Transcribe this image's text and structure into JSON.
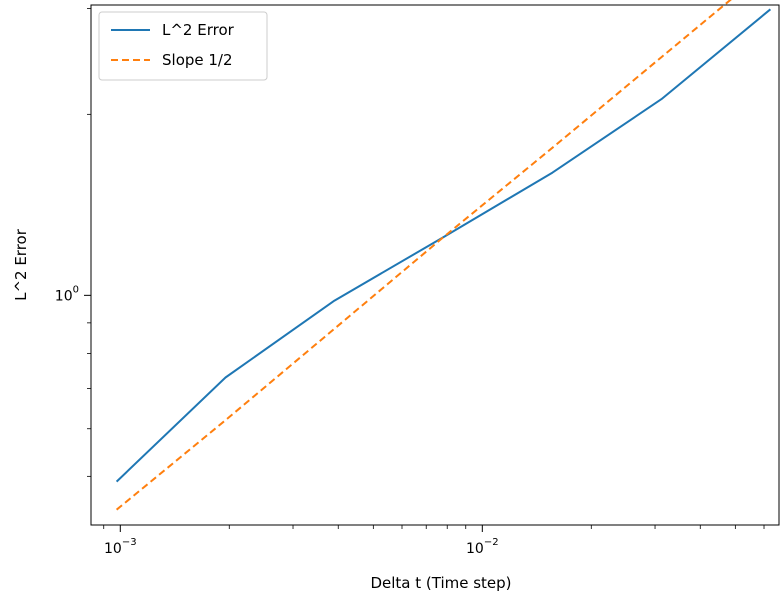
{
  "chart_data": {
    "type": "line",
    "xscale": "log",
    "yscale": "log",
    "xlabel": "Delta t (Time step)",
    "ylabel": "L^2 Error",
    "xlim": [
      0.00083,
      0.066
    ],
    "ylim": [
      0.415,
      3.04
    ],
    "grid": false,
    "legend_position": "top-left",
    "x_ticks": [
      {
        "value": 0.001,
        "base": "10",
        "exp": "−3"
      },
      {
        "value": 0.01,
        "base": "10",
        "exp": "−2"
      }
    ],
    "y_ticks": [
      {
        "value": 1,
        "base": "10",
        "exp": "0"
      }
    ],
    "x": [
      0.0009765625,
      0.001953125,
      0.00390625,
      0.0078125,
      0.015625,
      0.03125,
      0.0625
    ],
    "series": [
      {
        "name": "L^2 Error",
        "style": "solid",
        "color": "#1f77b4",
        "values": [
          0.49,
          0.73,
          0.98,
          1.25,
          1.6,
          2.12,
          2.99
        ]
      },
      {
        "name": "Slope 1/2",
        "style": "dashed",
        "color": "#ff7f0e",
        "values": [
          0.44,
          0.62,
          0.88,
          1.25,
          1.76,
          2.49,
          3.52
        ]
      }
    ]
  }
}
